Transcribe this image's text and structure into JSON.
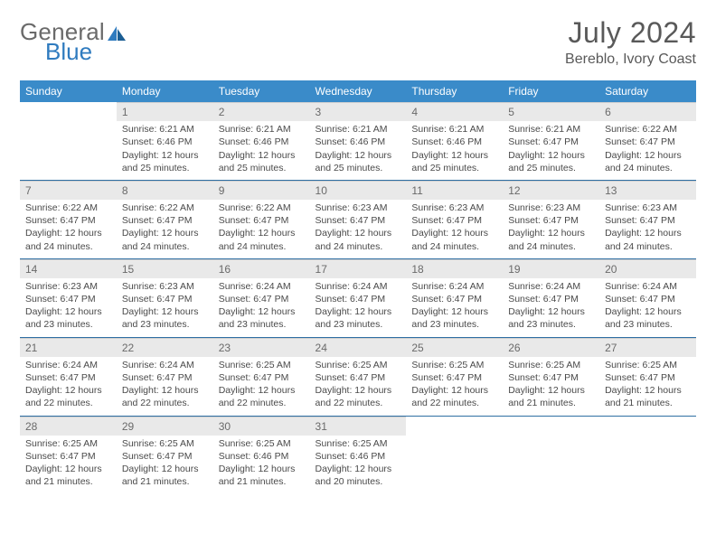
{
  "logo": {
    "text1": "General",
    "text2": "Blue"
  },
  "title": "July 2024",
  "location": "Bereblo, Ivory Coast",
  "colors": {
    "header_bg": "#3a8bc9",
    "header_text": "#ffffff",
    "daynum_bg": "#e9e9e9",
    "week_sep": "#2f6fa3",
    "text": "#4a4a4a",
    "logo_blue": "#2f7bbf"
  },
  "day_headers": [
    "Sunday",
    "Monday",
    "Tuesday",
    "Wednesday",
    "Thursday",
    "Friday",
    "Saturday"
  ],
  "weeks": [
    [
      {
        "n": "",
        "sr": "",
        "ss": "",
        "dl": ""
      },
      {
        "n": "1",
        "sr": "Sunrise: 6:21 AM",
        "ss": "Sunset: 6:46 PM",
        "dl": "Daylight: 12 hours and 25 minutes."
      },
      {
        "n": "2",
        "sr": "Sunrise: 6:21 AM",
        "ss": "Sunset: 6:46 PM",
        "dl": "Daylight: 12 hours and 25 minutes."
      },
      {
        "n": "3",
        "sr": "Sunrise: 6:21 AM",
        "ss": "Sunset: 6:46 PM",
        "dl": "Daylight: 12 hours and 25 minutes."
      },
      {
        "n": "4",
        "sr": "Sunrise: 6:21 AM",
        "ss": "Sunset: 6:46 PM",
        "dl": "Daylight: 12 hours and 25 minutes."
      },
      {
        "n": "5",
        "sr": "Sunrise: 6:21 AM",
        "ss": "Sunset: 6:47 PM",
        "dl": "Daylight: 12 hours and 25 minutes."
      },
      {
        "n": "6",
        "sr": "Sunrise: 6:22 AM",
        "ss": "Sunset: 6:47 PM",
        "dl": "Daylight: 12 hours and 24 minutes."
      }
    ],
    [
      {
        "n": "7",
        "sr": "Sunrise: 6:22 AM",
        "ss": "Sunset: 6:47 PM",
        "dl": "Daylight: 12 hours and 24 minutes."
      },
      {
        "n": "8",
        "sr": "Sunrise: 6:22 AM",
        "ss": "Sunset: 6:47 PM",
        "dl": "Daylight: 12 hours and 24 minutes."
      },
      {
        "n": "9",
        "sr": "Sunrise: 6:22 AM",
        "ss": "Sunset: 6:47 PM",
        "dl": "Daylight: 12 hours and 24 minutes."
      },
      {
        "n": "10",
        "sr": "Sunrise: 6:23 AM",
        "ss": "Sunset: 6:47 PM",
        "dl": "Daylight: 12 hours and 24 minutes."
      },
      {
        "n": "11",
        "sr": "Sunrise: 6:23 AM",
        "ss": "Sunset: 6:47 PM",
        "dl": "Daylight: 12 hours and 24 minutes."
      },
      {
        "n": "12",
        "sr": "Sunrise: 6:23 AM",
        "ss": "Sunset: 6:47 PM",
        "dl": "Daylight: 12 hours and 24 minutes."
      },
      {
        "n": "13",
        "sr": "Sunrise: 6:23 AM",
        "ss": "Sunset: 6:47 PM",
        "dl": "Daylight: 12 hours and 24 minutes."
      }
    ],
    [
      {
        "n": "14",
        "sr": "Sunrise: 6:23 AM",
        "ss": "Sunset: 6:47 PM",
        "dl": "Daylight: 12 hours and 23 minutes."
      },
      {
        "n": "15",
        "sr": "Sunrise: 6:23 AM",
        "ss": "Sunset: 6:47 PM",
        "dl": "Daylight: 12 hours and 23 minutes."
      },
      {
        "n": "16",
        "sr": "Sunrise: 6:24 AM",
        "ss": "Sunset: 6:47 PM",
        "dl": "Daylight: 12 hours and 23 minutes."
      },
      {
        "n": "17",
        "sr": "Sunrise: 6:24 AM",
        "ss": "Sunset: 6:47 PM",
        "dl": "Daylight: 12 hours and 23 minutes."
      },
      {
        "n": "18",
        "sr": "Sunrise: 6:24 AM",
        "ss": "Sunset: 6:47 PM",
        "dl": "Daylight: 12 hours and 23 minutes."
      },
      {
        "n": "19",
        "sr": "Sunrise: 6:24 AM",
        "ss": "Sunset: 6:47 PM",
        "dl": "Daylight: 12 hours and 23 minutes."
      },
      {
        "n": "20",
        "sr": "Sunrise: 6:24 AM",
        "ss": "Sunset: 6:47 PM",
        "dl": "Daylight: 12 hours and 23 minutes."
      }
    ],
    [
      {
        "n": "21",
        "sr": "Sunrise: 6:24 AM",
        "ss": "Sunset: 6:47 PM",
        "dl": "Daylight: 12 hours and 22 minutes."
      },
      {
        "n": "22",
        "sr": "Sunrise: 6:24 AM",
        "ss": "Sunset: 6:47 PM",
        "dl": "Daylight: 12 hours and 22 minutes."
      },
      {
        "n": "23",
        "sr": "Sunrise: 6:25 AM",
        "ss": "Sunset: 6:47 PM",
        "dl": "Daylight: 12 hours and 22 minutes."
      },
      {
        "n": "24",
        "sr": "Sunrise: 6:25 AM",
        "ss": "Sunset: 6:47 PM",
        "dl": "Daylight: 12 hours and 22 minutes."
      },
      {
        "n": "25",
        "sr": "Sunrise: 6:25 AM",
        "ss": "Sunset: 6:47 PM",
        "dl": "Daylight: 12 hours and 22 minutes."
      },
      {
        "n": "26",
        "sr": "Sunrise: 6:25 AM",
        "ss": "Sunset: 6:47 PM",
        "dl": "Daylight: 12 hours and 21 minutes."
      },
      {
        "n": "27",
        "sr": "Sunrise: 6:25 AM",
        "ss": "Sunset: 6:47 PM",
        "dl": "Daylight: 12 hours and 21 minutes."
      }
    ],
    [
      {
        "n": "28",
        "sr": "Sunrise: 6:25 AM",
        "ss": "Sunset: 6:47 PM",
        "dl": "Daylight: 12 hours and 21 minutes."
      },
      {
        "n": "29",
        "sr": "Sunrise: 6:25 AM",
        "ss": "Sunset: 6:47 PM",
        "dl": "Daylight: 12 hours and 21 minutes."
      },
      {
        "n": "30",
        "sr": "Sunrise: 6:25 AM",
        "ss": "Sunset: 6:46 PM",
        "dl": "Daylight: 12 hours and 21 minutes."
      },
      {
        "n": "31",
        "sr": "Sunrise: 6:25 AM",
        "ss": "Sunset: 6:46 PM",
        "dl": "Daylight: 12 hours and 20 minutes."
      },
      {
        "n": "",
        "sr": "",
        "ss": "",
        "dl": ""
      },
      {
        "n": "",
        "sr": "",
        "ss": "",
        "dl": ""
      },
      {
        "n": "",
        "sr": "",
        "ss": "",
        "dl": ""
      }
    ]
  ]
}
